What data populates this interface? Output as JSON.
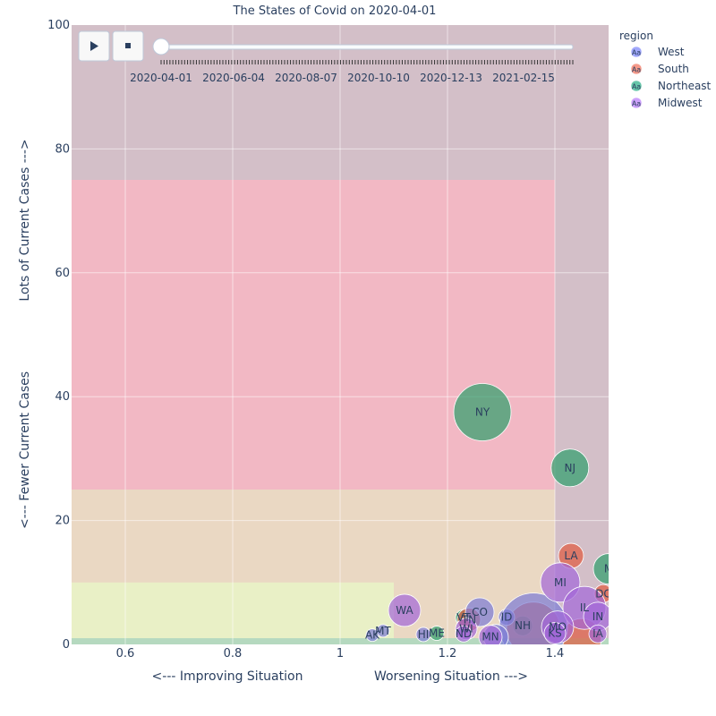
{
  "chart_data": {
    "type": "scatter",
    "title": "The States of Covid on 2020-04-01",
    "xlabel_left": "<--- Improving Situation",
    "xlabel_right": "Worsening Situation --->",
    "ylabel_bottom": "<--- Fewer Current Cases",
    "ylabel_top": "Lots of Current Cases --->",
    "xlim": [
      0.5,
      1.5
    ],
    "ylim": [
      0,
      100
    ],
    "x_ticks": [
      0.6,
      0.8,
      1,
      1.2,
      1.4
    ],
    "x_tick_labels": [
      "0.6",
      "0.8",
      "1",
      "1.2",
      "1.4"
    ],
    "y_ticks": [
      0,
      20,
      40,
      60,
      80,
      100
    ],
    "y_tick_labels": [
      "0",
      "20",
      "40",
      "60",
      "80",
      "100"
    ],
    "grid": true,
    "background_color": "#d3bfc8",
    "zones": [
      {
        "x": [
          0.5,
          1.4
        ],
        "y": [
          25,
          75
        ],
        "color": "#f2b8c4"
      },
      {
        "x": [
          0.5,
          1.4
        ],
        "y": [
          0,
          25
        ],
        "color": "#ead8c3"
      },
      {
        "x": [
          0.5,
          1.1
        ],
        "y": [
          0,
          10
        ],
        "color": "#e9f0c6"
      },
      {
        "x": [
          0.5,
          1.5
        ],
        "y": [
          0,
          1
        ],
        "color": "#b5d9bf"
      }
    ],
    "legend": {
      "title": "region",
      "placement": "top-right",
      "entries": [
        {
          "name": "West",
          "color": "#636efa"
        },
        {
          "name": "South",
          "color": "#ef553b"
        },
        {
          "name": "Northeast",
          "color": "#00a070"
        },
        {
          "name": "Midwest",
          "color": "#ab63fa"
        }
      ]
    },
    "marker_symbol": "Aa",
    "series": [
      {
        "name": "Northeast",
        "color": "#2e9e6b",
        "points": [
          {
            "label": "NY",
            "x": 1.265,
            "y": 37.5,
            "size": 32
          },
          {
            "label": "NJ",
            "x": 1.428,
            "y": 28.5,
            "size": 21
          },
          {
            "label": "M",
            "x": 1.5,
            "y": 12.2,
            "size": 17
          },
          {
            "label": "NH",
            "x": 1.34,
            "y": 3.0,
            "size": 11
          },
          {
            "label": "ME",
            "x": 1.18,
            "y": 1.8,
            "size": 8
          },
          {
            "label": "VT",
            "x": 1.23,
            "y": 4.3,
            "size": 9
          }
        ]
      },
      {
        "name": "South",
        "color": "#e05a3e",
        "points": [
          {
            "label": "LA",
            "x": 1.43,
            "y": 14.3,
            "size": 14
          },
          {
            "label": "DC",
            "x": 1.49,
            "y": 8.2,
            "size": 10
          },
          {
            "label": "TN",
            "x": 1.24,
            "y": 4.0,
            "size": 13
          },
          {
            "label": "",
            "x": 1.36,
            "y": 2.5,
            "size": 30
          },
          {
            "label": "",
            "x": 1.45,
            "y": 1.0,
            "size": 22
          }
        ]
      },
      {
        "name": "West",
        "color": "#7a7ad6",
        "points": [
          {
            "label": "AK",
            "x": 1.06,
            "y": 1.5,
            "size": 7
          },
          {
            "label": "MT",
            "x": 1.08,
            "y": 2.2,
            "size": 7
          },
          {
            "label": "HI",
            "x": 1.155,
            "y": 1.6,
            "size": 8
          },
          {
            "label": "CO",
            "x": 1.26,
            "y": 5.2,
            "size": 16
          },
          {
            "label": "ID",
            "x": 1.31,
            "y": 4.4,
            "size": 9
          },
          {
            "label": "",
            "x": 1.36,
            "y": 2.8,
            "size": 38
          },
          {
            "label": "",
            "x": 1.29,
            "y": 1.2,
            "size": 14
          }
        ]
      },
      {
        "name": "Midwest",
        "color": "#a266d8",
        "points": [
          {
            "label": "WA",
            "x": 1.12,
            "y": 5.5,
            "size": 18
          },
          {
            "label": "MI",
            "x": 1.41,
            "y": 10.0,
            "size": 22
          },
          {
            "label": "IL",
            "x": 1.455,
            "y": 5.9,
            "size": 24
          },
          {
            "label": "IN",
            "x": 1.48,
            "y": 4.5,
            "size": 16
          },
          {
            "label": "MO",
            "x": 1.405,
            "y": 2.8,
            "size": 18
          },
          {
            "label": "KS",
            "x": 1.4,
            "y": 1.8,
            "size": 12
          },
          {
            "label": "IA",
            "x": 1.48,
            "y": 1.7,
            "size": 10
          },
          {
            "label": "WI",
            "x": 1.235,
            "y": 2.5,
            "size": 12
          },
          {
            "label": "ND",
            "x": 1.23,
            "y": 1.7,
            "size": 9
          },
          {
            "label": "MN",
            "x": 1.28,
            "y": 1.2,
            "size": 13
          }
        ]
      }
    ]
  },
  "slider": {
    "labels": [
      "2020-04-01",
      "2020-06-04",
      "2020-08-07",
      "2020-10-10",
      "2020-12-13",
      "2021-02-15"
    ],
    "current_index": 0,
    "play_icon": "play-icon",
    "stop_icon": "stop-icon"
  }
}
